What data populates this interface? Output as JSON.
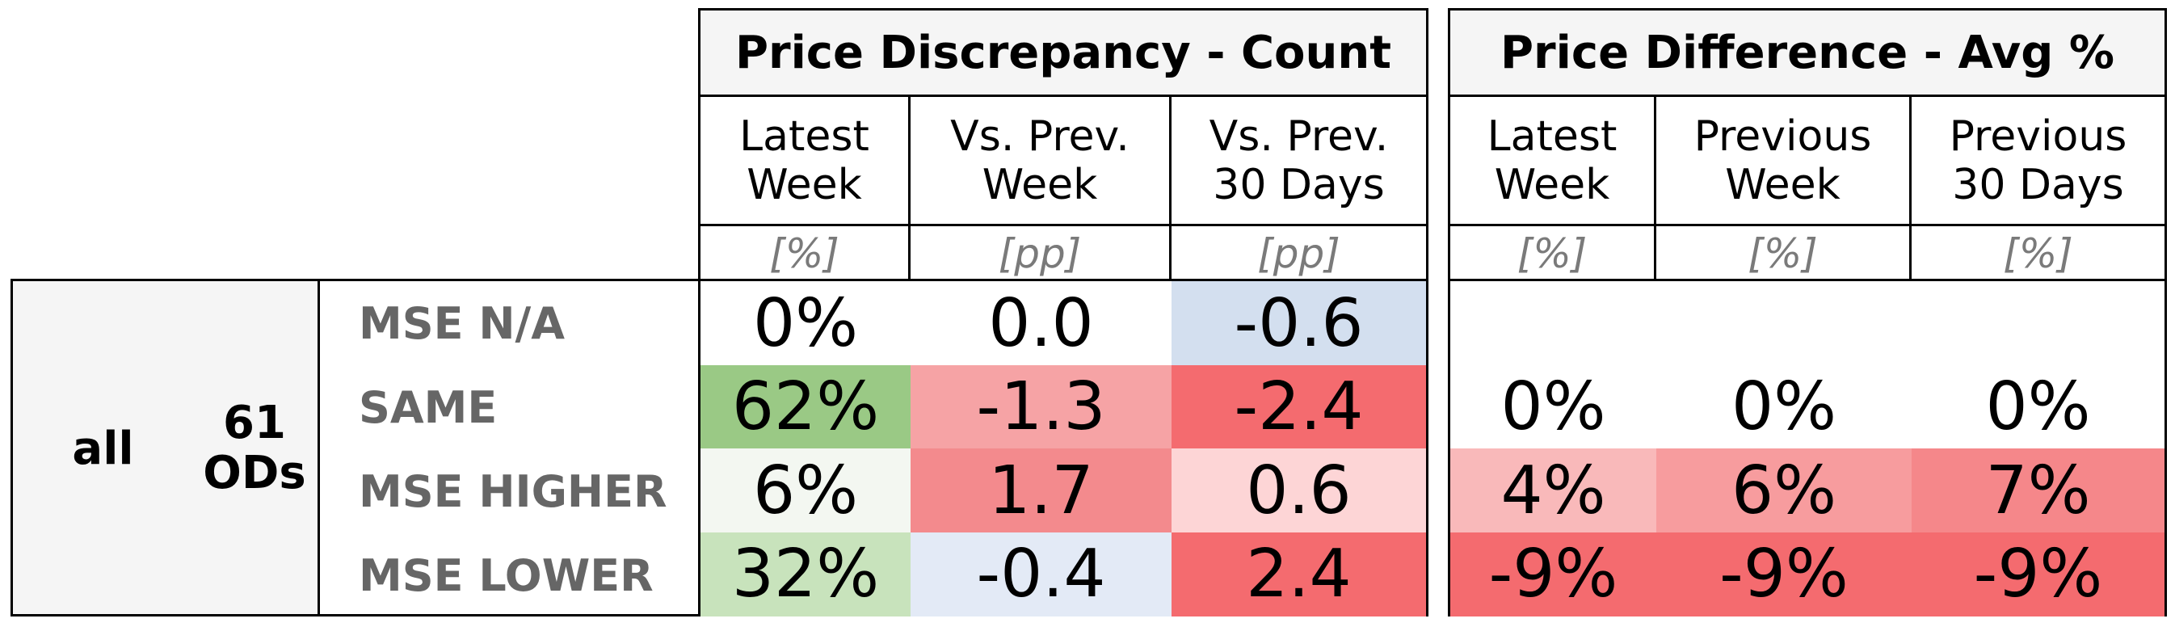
{
  "chart_data": {
    "type": "table",
    "group": {
      "segment": "all",
      "count_line1": "61",
      "count_line2": "ODs"
    },
    "panels": [
      {
        "title": "Price Discrepancy - Count",
        "columns": [
          {
            "label1": "Latest",
            "label2": "Week",
            "unit": "[%]"
          },
          {
            "label1": "Vs. Prev.",
            "label2": "Week",
            "unit": "[pp]"
          },
          {
            "label1": "Vs. Prev.",
            "label2": "30 Days",
            "unit": "[pp]"
          }
        ],
        "rows": [
          {
            "cells": [
              {
                "text": "0%",
                "value": 0,
                "color": "#ffffff"
              },
              {
                "text": "0.0",
                "value": 0.0,
                "color": "#ffffff"
              },
              {
                "text": "-0.6",
                "value": -0.6,
                "color": "#d3dfef"
              }
            ]
          },
          {
            "cells": [
              {
                "text": "62%",
                "value": 62,
                "color": "#9ac985"
              },
              {
                "text": "-1.3",
                "value": -1.3,
                "color": "#f6a3a5"
              },
              {
                "text": "-2.4",
                "value": -2.4,
                "color": "#f46b6f"
              }
            ]
          },
          {
            "cells": [
              {
                "text": "6%",
                "value": 6,
                "color": "#f3f7f1"
              },
              {
                "text": "1.7",
                "value": 1.7,
                "color": "#f38a8d"
              },
              {
                "text": "0.6",
                "value": 0.6,
                "color": "#fdd5d6"
              }
            ]
          },
          {
            "cells": [
              {
                "text": "32%",
                "value": 32,
                "color": "#c8e3bc"
              },
              {
                "text": "-0.4",
                "value": -0.4,
                "color": "#e3eaf6"
              },
              {
                "text": "2.4",
                "value": 2.4,
                "color": "#f46b6f"
              }
            ]
          }
        ]
      },
      {
        "title": "Price Difference - Avg %",
        "columns": [
          {
            "label1": "Latest",
            "label2": "Week",
            "unit": "[%]"
          },
          {
            "label1": "Previous",
            "label2": "Week",
            "unit": "[%]"
          },
          {
            "label1": "Previous",
            "label2": "30 Days",
            "unit": "[%]"
          }
        ],
        "rows": [
          {
            "cells": [
              {
                "text": "",
                "value": null,
                "color": "#ffffff"
              },
              {
                "text": "",
                "value": null,
                "color": "#ffffff"
              },
              {
                "text": "",
                "value": null,
                "color": "#ffffff"
              }
            ]
          },
          {
            "cells": [
              {
                "text": "0%",
                "value": 0,
                "color": "#ffffff"
              },
              {
                "text": "0%",
                "value": 0,
                "color": "#ffffff"
              },
              {
                "text": "0%",
                "value": 0,
                "color": "#ffffff"
              }
            ]
          },
          {
            "cells": [
              {
                "text": "4%",
                "value": 4,
                "color": "#f9b9ba"
              },
              {
                "text": "6%",
                "value": 6,
                "color": "#f79c9e"
              },
              {
                "text": "7%",
                "value": 7,
                "color": "#f5878a"
              }
            ]
          },
          {
            "cells": [
              {
                "text": "-9%",
                "value": -9,
                "color": "#f46b6f"
              },
              {
                "text": "-9%",
                "value": -9,
                "color": "#f46b6f"
              },
              {
                "text": "-9%",
                "value": -9,
                "color": "#f46b6f"
              }
            ]
          }
        ]
      }
    ],
    "row_labels": [
      "MSE N/A",
      "SAME",
      "MSE HIGHER",
      "MSE LOWER"
    ]
  }
}
